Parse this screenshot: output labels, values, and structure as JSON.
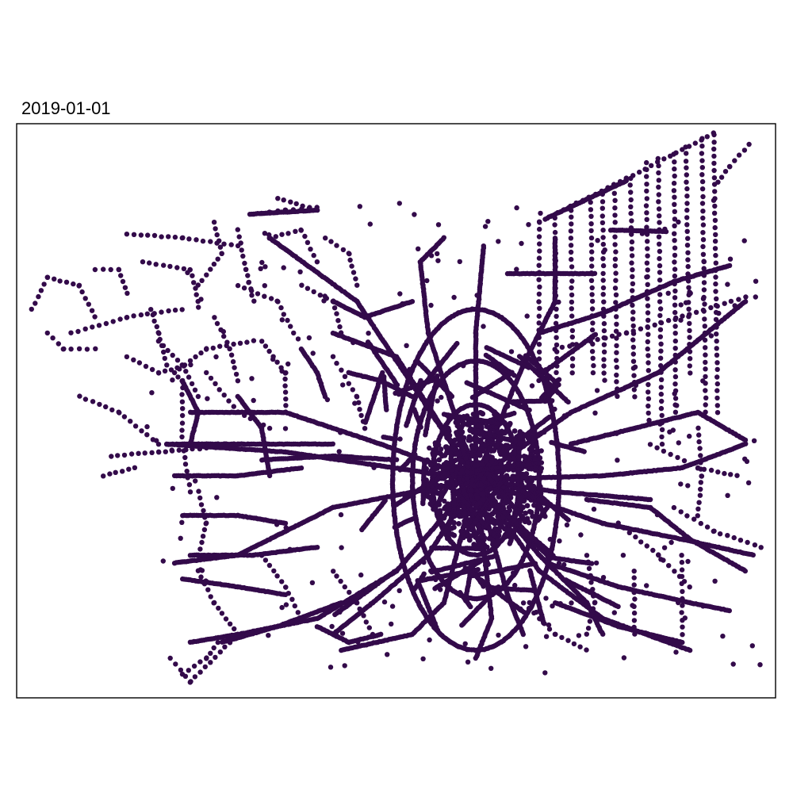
{
  "panel": {
    "title": "2019-01-01"
  },
  "style": {
    "point_color": "#330a4a",
    "frame_color": "#000000"
  }
}
